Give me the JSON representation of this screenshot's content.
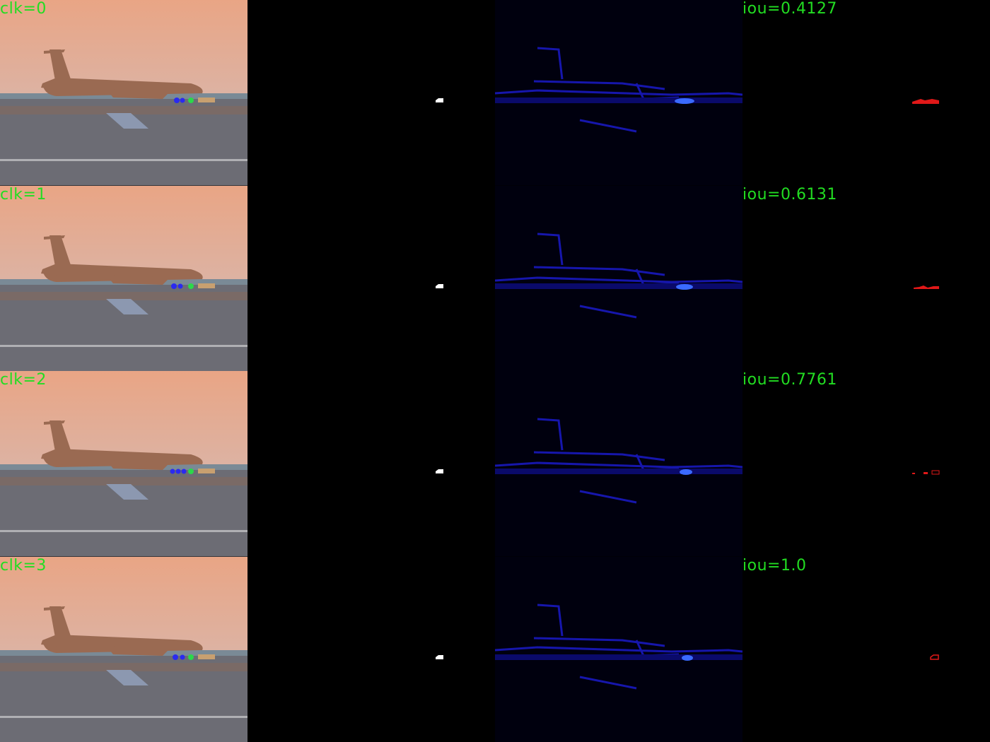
{
  "rows": [
    {
      "click_label": "clk=0",
      "iou_label": "iou=0.4127"
    },
    {
      "click_label": "clk=1",
      "iou_label": "iou=0.6131"
    },
    {
      "click_label": "clk=2",
      "iou_label": "iou=0.7761"
    },
    {
      "click_label": "clk=3",
      "iou_label": "iou=1.0"
    }
  ],
  "colors": {
    "label_text": "#22dd22",
    "sky": "#e8a889",
    "aircraft": "#9a6a52",
    "tarmac": "#6c6c74",
    "positive_click": "#2bd84a",
    "negative_click": "#2a2af0",
    "gt_mask": "#ffffff",
    "prob_map": "#1a1aff",
    "pred_mask": "#e01818"
  }
}
